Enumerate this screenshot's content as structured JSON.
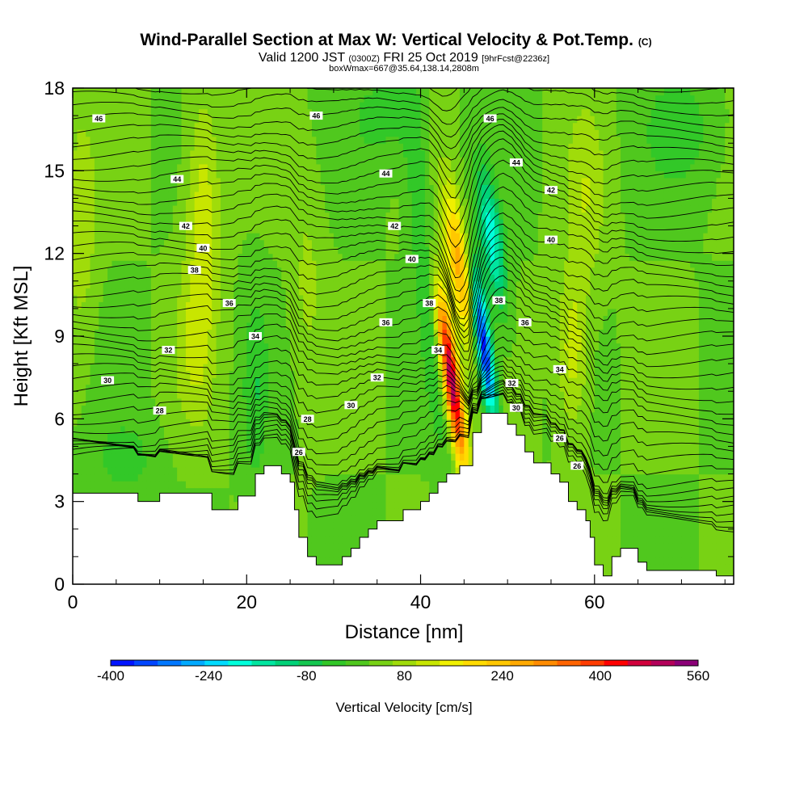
{
  "title": {
    "main": "Wind-Parallel Section at Max W: Vertical Velocity & Pot.Temp.",
    "main_unit": "(C)",
    "valid_prefix": "Valid 1200 JST",
    "valid_utc": "(0300Z)",
    "valid_date": "FRI 25 Oct 2019",
    "forecast": "[9hrFcst@2236z]",
    "box": "boxWmax=667@35.64,138.14,2808m"
  },
  "chart_data": {
    "type": "heatmap",
    "xlabel": "Distance [nm]",
    "ylabel": "Height [Kft MSL]",
    "xlim": [
      0,
      76
    ],
    "ylim": [
      0,
      18
    ],
    "x_ticks": [
      0,
      20,
      40,
      60
    ],
    "y_ticks": [
      0,
      3,
      6,
      9,
      12,
      15,
      18
    ],
    "grid": false,
    "colorbar": {
      "title": "Vertical Velocity [cm/s]",
      "placement": "bottom",
      "min": -400,
      "max": 560,
      "step": 40,
      "tick_labels": [
        "-400",
        "-240",
        "-80",
        "80",
        "240",
        "400",
        "560"
      ],
      "colors": [
        "#0014ff",
        "#0046ff",
        "#0078ff",
        "#00aaff",
        "#00dcff",
        "#00ffdc",
        "#00e6a0",
        "#00d278",
        "#14c850",
        "#32c828",
        "#50c81e",
        "#78d214",
        "#a0dc0a",
        "#c8e600",
        "#f0f000",
        "#ffdc00",
        "#ffc800",
        "#ffaa00",
        "#ff8c00",
        "#ff6400",
        "#ff3c00",
        "#ff0000",
        "#d2003c",
        "#b4005a",
        "#8c0078"
      ]
    },
    "terrain_kft": [
      {
        "x": 0,
        "y": 3.3
      },
      {
        "x": 7.5,
        "y": 3.3
      },
      {
        "x": 7.5,
        "y": 3.0
      },
      {
        "x": 10,
        "y": 3.0
      },
      {
        "x": 10,
        "y": 3.3
      },
      {
        "x": 16,
        "y": 3.3
      },
      {
        "x": 16,
        "y": 2.7
      },
      {
        "x": 19,
        "y": 2.7
      },
      {
        "x": 19,
        "y": 3.2
      },
      {
        "x": 21,
        "y": 3.2
      },
      {
        "x": 21,
        "y": 4.0
      },
      {
        "x": 22,
        "y": 4.0
      },
      {
        "x": 22,
        "y": 4.3
      },
      {
        "x": 24,
        "y": 4.3
      },
      {
        "x": 24,
        "y": 4.0
      },
      {
        "x": 25,
        "y": 4.0
      },
      {
        "x": 25,
        "y": 3.7
      },
      {
        "x": 25.5,
        "y": 3.7
      },
      {
        "x": 25.5,
        "y": 2.7
      },
      {
        "x": 26,
        "y": 2.7
      },
      {
        "x": 26,
        "y": 1.7
      },
      {
        "x": 27,
        "y": 1.7
      },
      {
        "x": 27,
        "y": 1.0
      },
      {
        "x": 28,
        "y": 1.0
      },
      {
        "x": 28,
        "y": 0.7
      },
      {
        "x": 31,
        "y": 0.7
      },
      {
        "x": 31,
        "y": 1.0
      },
      {
        "x": 32,
        "y": 1.0
      },
      {
        "x": 32,
        "y": 1.3
      },
      {
        "x": 33,
        "y": 1.3
      },
      {
        "x": 33,
        "y": 1.7
      },
      {
        "x": 34,
        "y": 1.7
      },
      {
        "x": 34,
        "y": 2.0
      },
      {
        "x": 35,
        "y": 2.0
      },
      {
        "x": 35,
        "y": 2.3
      },
      {
        "x": 38,
        "y": 2.3
      },
      {
        "x": 38,
        "y": 2.7
      },
      {
        "x": 40,
        "y": 2.7
      },
      {
        "x": 40,
        "y": 3.0
      },
      {
        "x": 41,
        "y": 3.0
      },
      {
        "x": 41,
        "y": 3.3
      },
      {
        "x": 42,
        "y": 3.3
      },
      {
        "x": 42,
        "y": 3.7
      },
      {
        "x": 43,
        "y": 3.7
      },
      {
        "x": 43,
        "y": 4.0
      },
      {
        "x": 44.5,
        "y": 4.0
      },
      {
        "x": 44.5,
        "y": 4.3
      },
      {
        "x": 46,
        "y": 4.3
      },
      {
        "x": 46,
        "y": 5.5
      },
      {
        "x": 47,
        "y": 5.5
      },
      {
        "x": 47,
        "y": 6.2
      },
      {
        "x": 50,
        "y": 6.2
      },
      {
        "x": 50,
        "y": 5.8
      },
      {
        "x": 51,
        "y": 5.8
      },
      {
        "x": 51,
        "y": 5.4
      },
      {
        "x": 52,
        "y": 5.4
      },
      {
        "x": 52,
        "y": 4.8
      },
      {
        "x": 53,
        "y": 4.8
      },
      {
        "x": 53,
        "y": 4.4
      },
      {
        "x": 55,
        "y": 4.4
      },
      {
        "x": 55,
        "y": 4.0
      },
      {
        "x": 56,
        "y": 4.0
      },
      {
        "x": 56,
        "y": 3.7
      },
      {
        "x": 57,
        "y": 3.7
      },
      {
        "x": 57,
        "y": 3.0
      },
      {
        "x": 58,
        "y": 3.0
      },
      {
        "x": 58,
        "y": 2.7
      },
      {
        "x": 59,
        "y": 2.7
      },
      {
        "x": 59,
        "y": 2.3
      },
      {
        "x": 59.5,
        "y": 2.3
      },
      {
        "x": 59.5,
        "y": 1.7
      },
      {
        "x": 60,
        "y": 1.7
      },
      {
        "x": 60,
        "y": 0.7
      },
      {
        "x": 61,
        "y": 0.7
      },
      {
        "x": 61,
        "y": 0.3
      },
      {
        "x": 62,
        "y": 0.3
      },
      {
        "x": 62,
        "y": 1.0
      },
      {
        "x": 63,
        "y": 1.0
      },
      {
        "x": 63,
        "y": 1.3
      },
      {
        "x": 65,
        "y": 1.3
      },
      {
        "x": 65,
        "y": 0.8
      },
      {
        "x": 66,
        "y": 0.8
      },
      {
        "x": 66,
        "y": 0.5
      },
      {
        "x": 74,
        "y": 0.5
      },
      {
        "x": 74,
        "y": 0.3
      },
      {
        "x": 76,
        "y": 0.3
      }
    ],
    "w_features": [
      {
        "name": "updraft-core",
        "x": 43.5,
        "y": 7.5,
        "sx": 0.7,
        "sy": 2.3,
        "amp": 520,
        "tilt": -0.45
      },
      {
        "name": "updraft-upper",
        "x": 44.5,
        "y": 11.5,
        "sx": 1.0,
        "sy": 2.0,
        "amp": 260,
        "tilt": -0.45
      },
      {
        "name": "downdraft-core",
        "x": 47.2,
        "y": 8.8,
        "sx": 0.65,
        "sy": 2.0,
        "amp": -450,
        "tilt": -0.4
      },
      {
        "name": "downdraft-upper",
        "x": 48.2,
        "y": 12.5,
        "sx": 0.9,
        "sy": 1.8,
        "amp": -220,
        "tilt": -0.4
      },
      {
        "name": "green-band-left",
        "x": 40.5,
        "y": 12,
        "sx": 1.0,
        "sy": 5.0,
        "amp": -90,
        "tilt": -0.3
      },
      {
        "name": "yellow-left-1",
        "x": 15,
        "y": 13.5,
        "sx": 1.4,
        "sy": 3.0,
        "amp": 110,
        "tilt": 0
      },
      {
        "name": "yellow-left-2",
        "x": 14,
        "y": 8.5,
        "sx": 1.6,
        "sy": 2.0,
        "amp": 70,
        "tilt": 0
      },
      {
        "name": "yellow-right-1",
        "x": 57.5,
        "y": 8.5,
        "sx": 1.2,
        "sy": 2.0,
        "amp": 110,
        "tilt": 0
      },
      {
        "name": "yellow-right-2",
        "x": 59,
        "y": 14,
        "sx": 1.6,
        "sy": 2.4,
        "amp": 70,
        "tilt": 0
      },
      {
        "name": "yellow-topleft",
        "x": 1,
        "y": 13,
        "sx": 1.2,
        "sy": 3.0,
        "amp": 70,
        "tilt": 0
      },
      {
        "name": "yellow-mid",
        "x": 27,
        "y": 11,
        "sx": 1.3,
        "sy": 2.5,
        "amp": 50,
        "tilt": 0
      },
      {
        "name": "green-right-top",
        "x": 70,
        "y": 16.5,
        "sx": 3.0,
        "sy": 1.5,
        "amp": -60,
        "tilt": 0
      },
      {
        "name": "green-low-1",
        "x": 21,
        "y": 7,
        "sx": 1.0,
        "sy": 2.5,
        "amp": -70,
        "tilt": 0
      },
      {
        "name": "green-low-2",
        "x": 6,
        "y": 4.5,
        "sx": 2.5,
        "sy": 1.0,
        "amp": -60,
        "tilt": 0
      },
      {
        "name": "green-mid-top",
        "x": 36,
        "y": 17,
        "sx": 3.0,
        "sy": 1.3,
        "amp": -50,
        "tilt": 0
      }
    ],
    "theta_levels_c": [
      24,
      26,
      28,
      30,
      32,
      34,
      36,
      38,
      40,
      42,
      44,
      46,
      48
    ],
    "theta_contour_labels": [
      {
        "x": 3,
        "y": 16.9,
        "text": "46"
      },
      {
        "x": 28,
        "y": 17.0,
        "text": "46"
      },
      {
        "x": 48,
        "y": 16.9,
        "text": "46"
      },
      {
        "x": 12,
        "y": 14.7,
        "text": "44"
      },
      {
        "x": 36,
        "y": 14.9,
        "text": "44"
      },
      {
        "x": 51,
        "y": 15.3,
        "text": "44"
      },
      {
        "x": 13,
        "y": 13.0,
        "text": "42"
      },
      {
        "x": 37,
        "y": 13.0,
        "text": "42"
      },
      {
        "x": 55,
        "y": 14.3,
        "text": "42"
      },
      {
        "x": 15,
        "y": 12.2,
        "text": "40"
      },
      {
        "x": 39,
        "y": 11.8,
        "text": "40"
      },
      {
        "x": 55,
        "y": 12.5,
        "text": "40"
      },
      {
        "x": 14,
        "y": 11.4,
        "text": "38"
      },
      {
        "x": 41,
        "y": 10.2,
        "text": "38"
      },
      {
        "x": 49,
        "y": 10.3,
        "text": "38"
      },
      {
        "x": 18,
        "y": 10.2,
        "text": "36"
      },
      {
        "x": 36,
        "y": 9.5,
        "text": "36"
      },
      {
        "x": 52,
        "y": 9.5,
        "text": "36"
      },
      {
        "x": 21,
        "y": 9.0,
        "text": "34"
      },
      {
        "x": 42,
        "y": 8.5,
        "text": "34"
      },
      {
        "x": 56,
        "y": 7.8,
        "text": "34"
      },
      {
        "x": 11,
        "y": 8.5,
        "text": "32"
      },
      {
        "x": 35,
        "y": 7.5,
        "text": "32"
      },
      {
        "x": 50.5,
        "y": 7.3,
        "text": "32"
      },
      {
        "x": 4,
        "y": 7.4,
        "text": "30"
      },
      {
        "x": 32,
        "y": 6.5,
        "text": "30"
      },
      {
        "x": 51,
        "y": 6.4,
        "text": "30"
      },
      {
        "x": 10,
        "y": 6.3,
        "text": "28"
      },
      {
        "x": 27,
        "y": 6.0,
        "text": "28"
      },
      {
        "x": 56,
        "y": 5.3,
        "text": "26"
      },
      {
        "x": 26,
        "y": 4.8,
        "text": "26"
      },
      {
        "x": 58,
        "y": 4.3,
        "text": "26"
      }
    ]
  }
}
